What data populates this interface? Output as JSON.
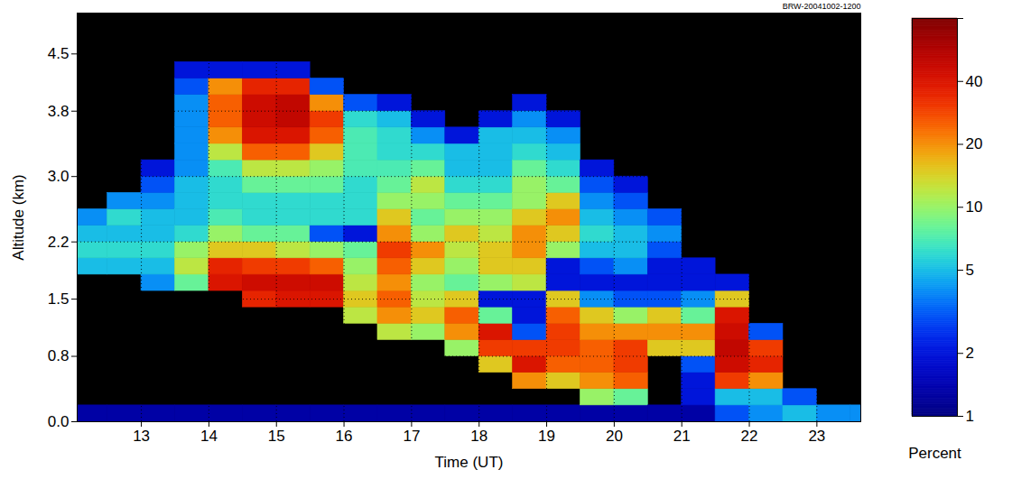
{
  "chart_data": {
    "type": "heatmap",
    "annotation": "BRW-20041002-1200",
    "x_label": "Time (UT)",
    "y_label": "Altitude (km)",
    "xlim": [
      12.05,
      23.65
    ],
    "xticks": [
      13,
      14,
      15,
      16,
      17,
      18,
      19,
      20,
      21,
      22,
      23
    ],
    "ylim": [
      0,
      5
    ],
    "yticks": [
      {
        "value": 0,
        "label": "0.0"
      },
      0.8,
      1.5,
      2.2,
      {
        "value": 3,
        "label": "3.0"
      },
      3.8,
      4.5
    ],
    "grid": true,
    "cells": {
      "x_edges": [
        12,
        12.5,
        13,
        13.5,
        14,
        14.5,
        15,
        15.5,
        16,
        16.5,
        17,
        17.5,
        18,
        18.5,
        19,
        19.5,
        20,
        20.5,
        21,
        21.5,
        22,
        22.5,
        23,
        23.5,
        24
      ],
      "y_edges": [
        0,
        0.2,
        0.4,
        0.6,
        0.8,
        1,
        1.2,
        1.4,
        1.6,
        1.8,
        2,
        2.2,
        2.4,
        2.6,
        2.8,
        3,
        3.2,
        3.4,
        3.6,
        3.8,
        4,
        4.2,
        4.4,
        4.6,
        4.8,
        5
      ],
      "values": [
        [
          1.3,
          null,
          null,
          null,
          null,
          null,
          null,
          null,
          null,
          5,
          6,
          5,
          4,
          null,
          null,
          null,
          null,
          null,
          null,
          null,
          null,
          null,
          null,
          null,
          null
        ],
        [
          1.3,
          null,
          null,
          null,
          null,
          null,
          null,
          null,
          null,
          5,
          6,
          5,
          6,
          4,
          null,
          null,
          null,
          null,
          null,
          null,
          null,
          null,
          null,
          null,
          null
        ],
        [
          1.3,
          null,
          null,
          null,
          null,
          null,
          null,
          null,
          4,
          5,
          6,
          5,
          5,
          4,
          3,
          2,
          null,
          null,
          null,
          null,
          null,
          null,
          null,
          null,
          null
        ],
        [
          1.3,
          null,
          null,
          null,
          null,
          null,
          null,
          null,
          8,
          12,
          10,
          6,
          5,
          5,
          5,
          4,
          4,
          4,
          4,
          4,
          3,
          2,
          null,
          null,
          null
        ],
        [
          1.3,
          null,
          null,
          null,
          null,
          null,
          null,
          null,
          40,
          35,
          15,
          10,
          7,
          6,
          6,
          7,
          12,
          20,
          25,
          25,
          20,
          2,
          null,
          null,
          null
        ],
        [
          1.3,
          null,
          null,
          null,
          null,
          null,
          null,
          35,
          45,
          30,
          15,
          8,
          6,
          6,
          8,
          12,
          25,
          40,
          45,
          45,
          35,
          2,
          null,
          null,
          null
        ],
        [
          1.3,
          null,
          null,
          null,
          null,
          null,
          null,
          40,
          45,
          30,
          12,
          8,
          6,
          6,
          8,
          12,
          25,
          40,
          50,
          50,
          35,
          2,
          null,
          null,
          null
        ],
        [
          1.3,
          null,
          null,
          null,
          null,
          null,
          null,
          40,
          45,
          25,
          10,
          3,
          6,
          6,
          8,
          10,
          15,
          25,
          30,
          20,
          3,
          null,
          null,
          null,
          null
        ],
        [
          1.3,
          null,
          null,
          null,
          null,
          null,
          12,
          15,
          12,
          10,
          8,
          2,
          6,
          6,
          6,
          7,
          7,
          7,
          6,
          3,
          null,
          null,
          null,
          null,
          null
        ],
        [
          1.3,
          null,
          null,
          null,
          null,
          12,
          20,
          25,
          20,
          25,
          30,
          20,
          15,
          10,
          8,
          7,
          6,
          6,
          5,
          2,
          null,
          null,
          null,
          null,
          null
        ],
        [
          1.3,
          null,
          null,
          null,
          null,
          10,
          15,
          12,
          10,
          15,
          20,
          10,
          8,
          10,
          12,
          8,
          6,
          4,
          2,
          null,
          null,
          null,
          null,
          null,
          null
        ],
        [
          1.3,
          null,
          null,
          null,
          10,
          20,
          25,
          15,
          8,
          10,
          12,
          15,
          10,
          8,
          6,
          5,
          5,
          2,
          null,
          null,
          null,
          null,
          null,
          null,
          null
        ],
        [
          1.3,
          null,
          null,
          15,
          30,
          40,
          8,
          2,
          10,
          15,
          15,
          12,
          10,
          8,
          6,
          5,
          5,
          5,
          2,
          null,
          null,
          null,
          null,
          null,
          null
        ],
        [
          1.3,
          null,
          20,
          40,
          30,
          3,
          2,
          2,
          12,
          15,
          20,
          20,
          15,
          10,
          10,
          8,
          6,
          5,
          4,
          2,
          null,
          null,
          null,
          null,
          null
        ],
        [
          1.3,
          null,
          15,
          25,
          30,
          30,
          25,
          15,
          2,
          2,
          10,
          15,
          20,
          15,
          8,
          6,
          5,
          4,
          2,
          null,
          null,
          null,
          null,
          null,
          null
        ],
        [
          1.3,
          10,
          20,
          25,
          25,
          20,
          15,
          4,
          2,
          3,
          5,
          6,
          5,
          4,
          3,
          2,
          null,
          null,
          null,
          null,
          null,
          null,
          null,
          null,
          null
        ],
        [
          1.3,
          8,
          25,
          30,
          30,
          20,
          10,
          3,
          2,
          4,
          5,
          5,
          4,
          3,
          2,
          null,
          null,
          null,
          null,
          null,
          null,
          null,
          null,
          null,
          null
        ],
        [
          1.3,
          null,
          null,
          null,
          15,
          20,
          15,
          3,
          2,
          2,
          3,
          4,
          3,
          null,
          null,
          null,
          null,
          null,
          null,
          null,
          null,
          null,
          null,
          null,
          null
        ],
        [
          1.3,
          2,
          2,
          3,
          15,
          20,
          8,
          4,
          2,
          2,
          null,
          null,
          null,
          null,
          null,
          null,
          null,
          null,
          null,
          null,
          null,
          null,
          null,
          null,
          null
        ],
        [
          3,
          5,
          30,
          45,
          50,
          45,
          40,
          15,
          2,
          null,
          null,
          null,
          null,
          null,
          null,
          null,
          null,
          null,
          null,
          null,
          null,
          null,
          null,
          null,
          null
        ],
        [
          4,
          5,
          20,
          35,
          30,
          3,
          null,
          null,
          null,
          null,
          null,
          null,
          null,
          null,
          null,
          null,
          null,
          null,
          null,
          null,
          null,
          null,
          null,
          null,
          null
        ],
        [
          5,
          3,
          null,
          null,
          null,
          null,
          null,
          null,
          null,
          null,
          null,
          null,
          null,
          null,
          null,
          null,
          null,
          null,
          null,
          null,
          null,
          null,
          null,
          null,
          null
        ],
        [
          4,
          null,
          null,
          null,
          null,
          null,
          null,
          null,
          null,
          null,
          null,
          null,
          null,
          null,
          null,
          null,
          null,
          null,
          null,
          null,
          null,
          null,
          null,
          null,
          null
        ],
        [
          4,
          null,
          null,
          null,
          null,
          null,
          null,
          null,
          null,
          null,
          null,
          null,
          null,
          null,
          null,
          null,
          null,
          null,
          null,
          null,
          null,
          null,
          null,
          null,
          null
        ]
      ]
    },
    "colorbar": {
      "label": "Percent",
      "log": true,
      "range": [
        1,
        80
      ],
      "ticks": [
        1,
        2,
        5,
        10,
        20,
        40,
        80
      ]
    }
  }
}
